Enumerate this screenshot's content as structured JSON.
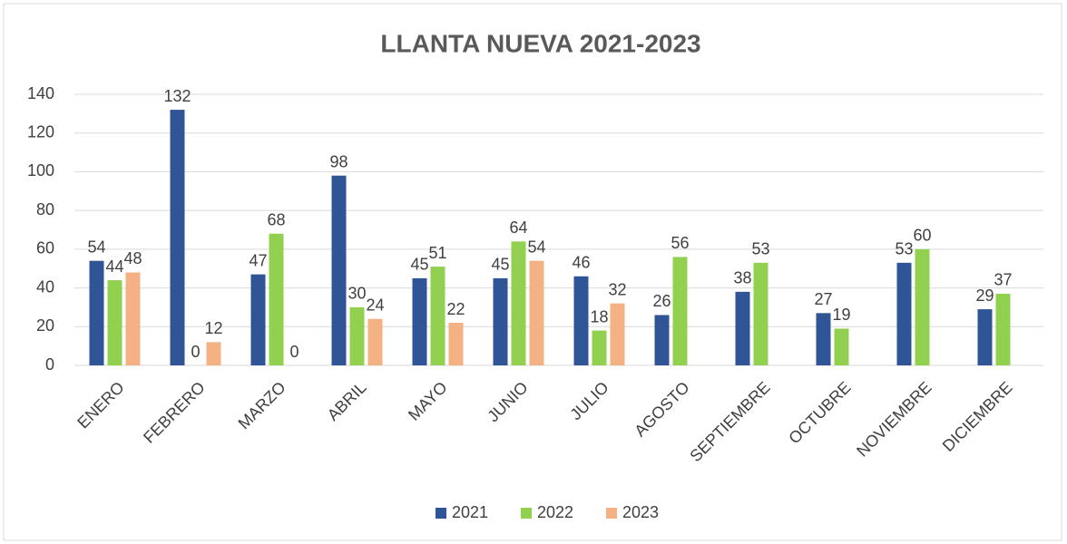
{
  "chart_data": {
    "type": "bar",
    "title": "LLANTA NUEVA 2021-2023",
    "categories": [
      "ENERO",
      "FEBRERO",
      "MARZO",
      "ABRIL",
      "MAYO",
      "JUNIO",
      "JULIO",
      "AGOSTO",
      "SEPTIEMBRE",
      "OCTUBRE",
      "NOVIEMBRE",
      "DICIEMBRE"
    ],
    "series": [
      {
        "name": "2021",
        "color": "#2f5597",
        "values": [
          54,
          132,
          47,
          98,
          45,
          45,
          46,
          26,
          38,
          27,
          53,
          29
        ]
      },
      {
        "name": "2022",
        "color": "#92d050",
        "values": [
          44,
          0,
          68,
          30,
          51,
          64,
          18,
          56,
          53,
          19,
          60,
          37
        ]
      },
      {
        "name": "2023",
        "color": "#f4b183",
        "values": [
          48,
          12,
          0,
          24,
          22,
          54,
          32,
          null,
          null,
          null,
          null,
          null
        ]
      }
    ],
    "ylim": [
      0,
      140
    ],
    "yticks": [
      0,
      20,
      40,
      60,
      80,
      100,
      120,
      140
    ],
    "grid": true,
    "legend": "bottom"
  }
}
